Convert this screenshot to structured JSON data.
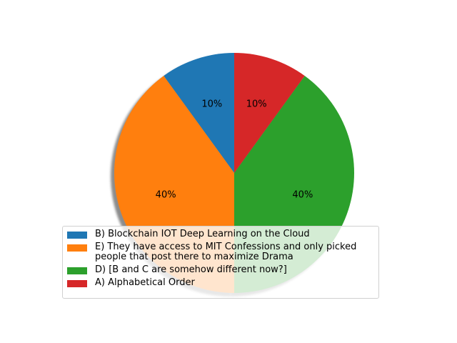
{
  "chart_data": {
    "type": "pie",
    "title": "",
    "labels": [
      "B) Blockchain IOT Deep Learning on the Cloud",
      "E) They have access to MIT Confessions and only picked\npeople that post there to maximize Drama",
      "D) [B and C are somehow different now?]",
      "A) Alphabetical Order"
    ],
    "values": [
      10,
      40,
      40,
      10
    ],
    "autopct_labels": [
      "10%",
      "40%",
      "40%",
      "10%"
    ],
    "colors": [
      "#1f77b4",
      "#ff7f0e",
      "#2ca02c",
      "#d62728"
    ],
    "start_angle_deg": 90,
    "direction": "counterclockwise",
    "shadow": true,
    "legend_placement": "lower-center"
  }
}
